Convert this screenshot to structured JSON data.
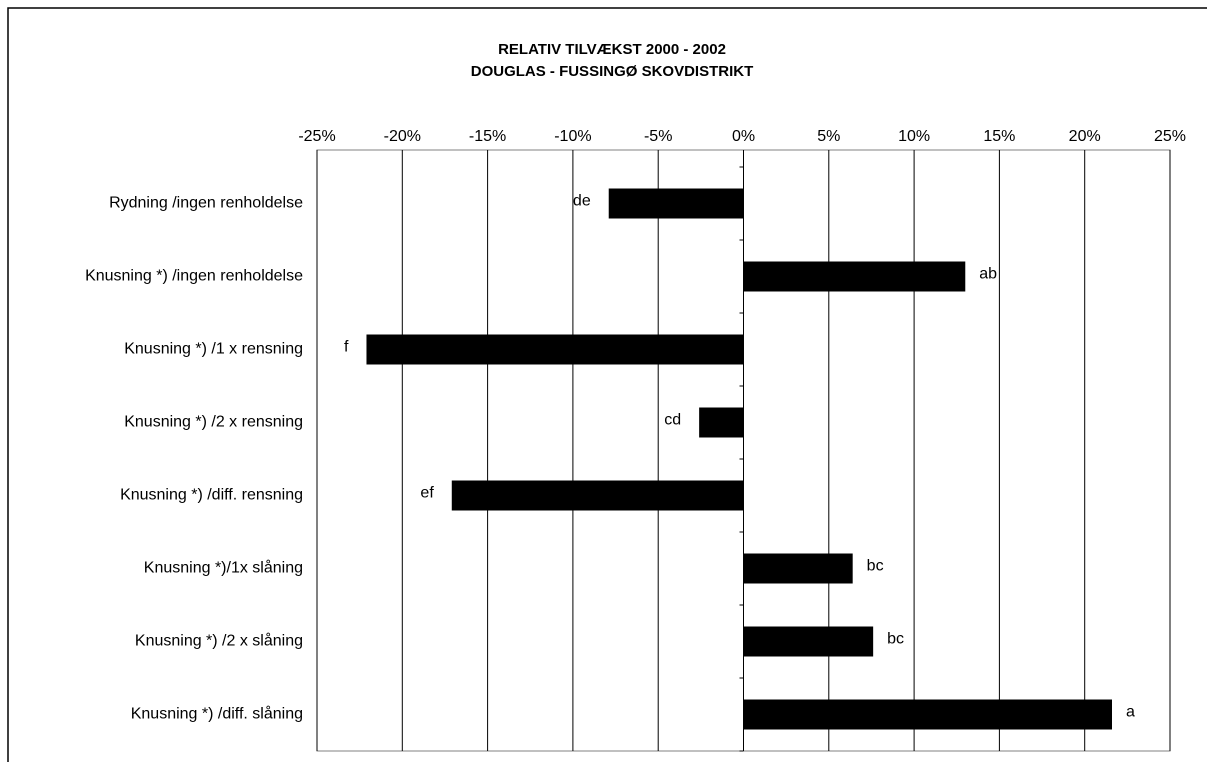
{
  "chart_data": {
    "type": "bar",
    "orientation": "horizontal",
    "title": "RELATIV TILVÆKST 2000 - 2002",
    "subtitle": "DOUGLAS - FUSSINGØ SKOVDISTRIKT",
    "categories": [
      "Rydning /ingen renholdelse",
      "Knusning *) /ingen renholdelse",
      "Knusning *) /1 x rensning",
      "Knusning *) /2 x rensning",
      "Knusning *) /diff. rensning",
      "Knusning *)/1x slåning",
      "Knusning *) /2 x slåning",
      "Knusning *) /diff. slåning"
    ],
    "values": [
      -7.9,
      13.0,
      -22.1,
      -2.6,
      -17.1,
      6.4,
      7.6,
      21.6
    ],
    "annotations": [
      "de",
      "ab",
      "f",
      "cd",
      "ef",
      "bc",
      "bc",
      "a"
    ],
    "color": "#000000",
    "xlim": [
      -25,
      25
    ],
    "xticks": [
      {
        "value": -25,
        "label": "-25%"
      },
      {
        "value": -20,
        "label": "-20%"
      },
      {
        "value": -15,
        "label": "-15%"
      },
      {
        "value": -10,
        "label": "-10%"
      },
      {
        "value": -5,
        "label": "-5%"
      },
      {
        "value": 0,
        "label": "0%"
      },
      {
        "value": 5,
        "label": "5%"
      },
      {
        "value": 10,
        "label": "10%"
      },
      {
        "value": 15,
        "label": "15%"
      },
      {
        "value": 20,
        "label": "20%"
      },
      {
        "value": 25,
        "label": "25%"
      }
    ],
    "grid": true
  }
}
